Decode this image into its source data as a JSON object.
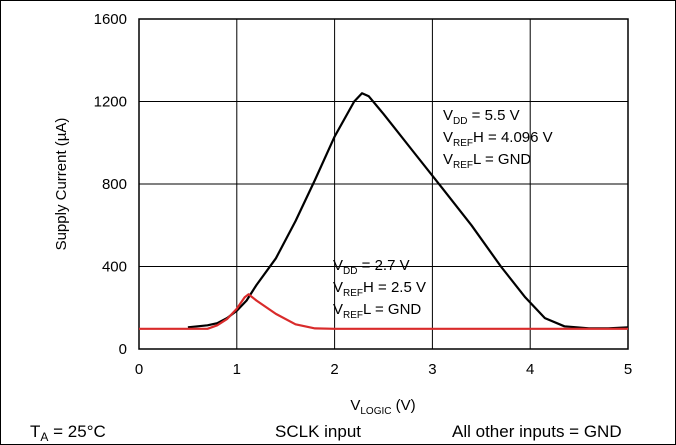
{
  "chart_data": {
    "type": "line",
    "xlabel": {
      "main": "V",
      "sub": "LOGIC",
      "unit": " (V)"
    },
    "ylabel": "Supply Current (µA)",
    "xlim": [
      0,
      5
    ],
    "ylim": [
      0,
      1600
    ],
    "x_ticks": [
      "0",
      "1",
      "2",
      "3",
      "4",
      "5"
    ],
    "y_ticks": [
      "0",
      "400",
      "800",
      "1200",
      "1600"
    ],
    "grid": true,
    "series": [
      {
        "color": "#000000",
        "points": [
          [
            0.5,
            105
          ],
          [
            0.7,
            115
          ],
          [
            0.8,
            125
          ],
          [
            0.9,
            150
          ],
          [
            1.0,
            185
          ],
          [
            1.1,
            235
          ],
          [
            1.2,
            310
          ],
          [
            1.4,
            440
          ],
          [
            1.6,
            620
          ],
          [
            1.8,
            820
          ],
          [
            2.0,
            1030
          ],
          [
            2.2,
            1200
          ],
          [
            2.28,
            1240
          ],
          [
            2.35,
            1225
          ],
          [
            2.5,
            1140
          ],
          [
            2.8,
            960
          ],
          [
            3.1,
            780
          ],
          [
            3.4,
            600
          ],
          [
            3.7,
            400
          ],
          [
            3.95,
            250
          ],
          [
            4.15,
            150
          ],
          [
            4.35,
            110
          ],
          [
            4.6,
            100
          ],
          [
            4.8,
            100
          ],
          [
            5.0,
            105
          ]
        ]
      },
      {
        "color": "#d92b2b",
        "points": [
          [
            0,
            98
          ],
          [
            0.7,
            98
          ],
          [
            0.8,
            115
          ],
          [
            0.9,
            145
          ],
          [
            1.0,
            195
          ],
          [
            1.08,
            250
          ],
          [
            1.12,
            265
          ],
          [
            1.2,
            235
          ],
          [
            1.4,
            170
          ],
          [
            1.6,
            120
          ],
          [
            1.8,
            100
          ],
          [
            2.0,
            98
          ],
          [
            3.0,
            98
          ],
          [
            4.0,
            98
          ],
          [
            5.0,
            98
          ]
        ]
      }
    ],
    "annotations": [
      {
        "lines": [
          {
            "v": "V",
            "sub": "DD",
            "rest": " = 5.5 V"
          },
          {
            "v": "V",
            "sub": "REF",
            "rest": "H = 4.096 V"
          },
          {
            "v": "V",
            "sub": "REF",
            "rest": "L = GND"
          }
        ]
      },
      {
        "lines": [
          {
            "v": "V",
            "sub": "DD",
            "rest": " = 2.7 V"
          },
          {
            "v": "V",
            "sub": "REF",
            "rest": "H = 2.5 V"
          },
          {
            "v": "V",
            "sub": "REF",
            "rest": "L = GND"
          }
        ]
      }
    ]
  },
  "footer": {
    "conditions": {
      "v": "T",
      "sub": "A",
      "rest": " = 25°C"
    },
    "input": "SCLK input",
    "other": "All other inputs = GND"
  }
}
